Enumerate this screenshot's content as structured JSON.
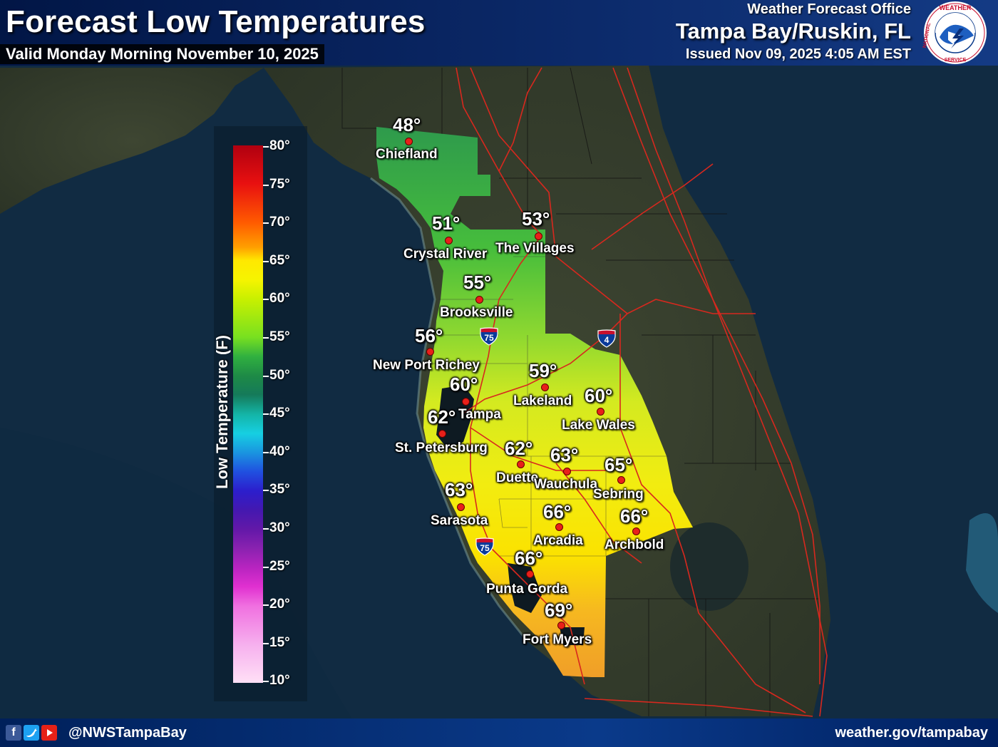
{
  "header": {
    "title": "Forecast Low Temperatures",
    "valid": "Valid Monday Morning November 10, 2025",
    "office_label": "Weather Forecast Office",
    "office": "Tampa Bay/Ruskin, FL",
    "issued": "Issued Nov 09, 2025 4:05 AM EST",
    "logo_ring_text": "NATIONAL WEATHER SERVICE"
  },
  "legend": {
    "title": "Low Temperature (F)",
    "ticks": [
      "80°",
      "75°",
      "70°",
      "65°",
      "60°",
      "55°",
      "50°",
      "45°",
      "40°",
      "35°",
      "30°",
      "25°",
      "20°",
      "15°",
      "10°"
    ]
  },
  "stations": [
    {
      "name": "Chiefland",
      "temp": "48°"
    },
    {
      "name": "Crystal River",
      "temp": "51°"
    },
    {
      "name": "The Villages",
      "temp": "53°"
    },
    {
      "name": "Brooksville",
      "temp": "55°"
    },
    {
      "name": "New Port Richey",
      "temp": "56°"
    },
    {
      "name": "Tampa",
      "temp": "60°"
    },
    {
      "name": "Lakeland",
      "temp": "59°"
    },
    {
      "name": "Lake Wales",
      "temp": "60°"
    },
    {
      "name": "St. Petersburg",
      "temp": "62°"
    },
    {
      "name": "Duette",
      "temp": "62°"
    },
    {
      "name": "Wauchula",
      "temp": "63°"
    },
    {
      "name": "Sebring",
      "temp": "65°"
    },
    {
      "name": "Sarasota",
      "temp": "63°"
    },
    {
      "name": "Arcadia",
      "temp": "66°"
    },
    {
      "name": "Archbold",
      "temp": "66°"
    },
    {
      "name": "Punta Gorda",
      "temp": "66°"
    },
    {
      "name": "Fort Myers",
      "temp": "69°"
    }
  ],
  "highway_shields": [
    "75",
    "75",
    "4"
  ],
  "footer": {
    "handle": "@NWSTampaBay",
    "website": "weather.gov/tampabay",
    "social_icons": [
      "facebook-icon",
      "twitter-icon",
      "youtube-icon"
    ]
  }
}
